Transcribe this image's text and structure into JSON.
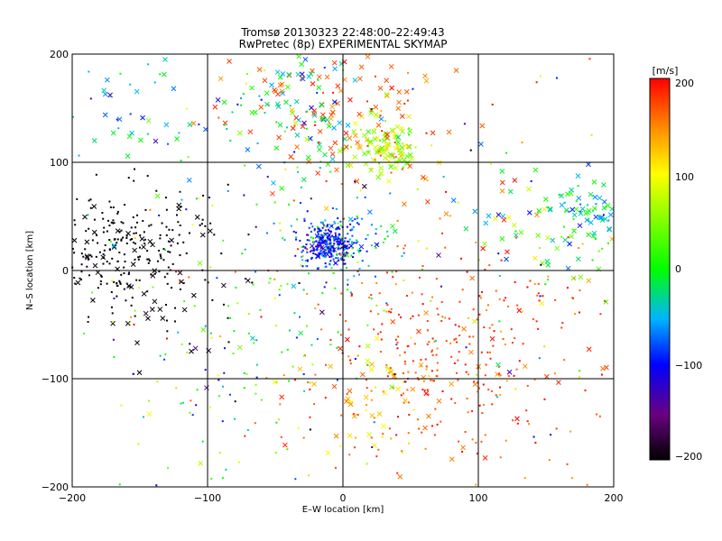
{
  "chart_data": {
    "type": "scatter",
    "title": "Tromsø 20130323 22:48:00–22:49:43",
    "subtitle": "RwPretec (8p) EXPERIMENTAL SKYMAP",
    "xlabel": "E–W location [km]",
    "ylabel": "N–S location [km]",
    "xlim": [
      -200,
      200
    ],
    "ylim": [
      -200,
      200
    ],
    "x_ticks": [
      "−200",
      "−100",
      "0",
      "100",
      "200"
    ],
    "y_ticks": [
      "−200",
      "−100",
      "0",
      "100",
      "200"
    ],
    "grid": true,
    "colorbar": {
      "label": "[m/s]",
      "range": [
        -200,
        200
      ],
      "ticks": [
        "200",
        "100",
        "0",
        "−100",
        "−200"
      ]
    },
    "markers": [
      "dot",
      "x"
    ],
    "clusters": [
      {
        "x": -10,
        "y": 25,
        "spread": 10,
        "value": -100,
        "vspread": 30,
        "count": 260,
        "marker": "dot"
      },
      {
        "x": 0,
        "y": 25,
        "spread": 22,
        "value": -40,
        "vspread": 70,
        "count": 120,
        "marker": "dot"
      },
      {
        "x": -160,
        "y": 20,
        "spread": 30,
        "value": -200,
        "vspread": 5,
        "count": 220,
        "marker": "dot"
      },
      {
        "x": -150,
        "y": -10,
        "spread": 40,
        "value": -195,
        "vspread": 10,
        "count": 60,
        "marker": "x"
      },
      {
        "x": 30,
        "y": 115,
        "spread": 14,
        "value": 70,
        "vspread": 50,
        "count": 110,
        "marker": "x"
      },
      {
        "x": 10,
        "y": 150,
        "spread": 45,
        "value": 170,
        "vspread": 30,
        "count": 140,
        "marker": "x"
      },
      {
        "x": -30,
        "y": 140,
        "spread": 30,
        "value": -20,
        "vspread": 80,
        "count": 90,
        "marker": "x"
      },
      {
        "x": -150,
        "y": 145,
        "spread": 25,
        "value": -50,
        "vspread": 60,
        "count": 40,
        "marker": "x"
      },
      {
        "x": 180,
        "y": 55,
        "spread": 15,
        "value": -20,
        "vspread": 60,
        "count": 70,
        "marker": "x"
      },
      {
        "x": 140,
        "y": 30,
        "spread": 35,
        "value": 40,
        "vspread": 120,
        "count": 60,
        "marker": "x"
      },
      {
        "x": 60,
        "y": -80,
        "spread": 50,
        "value": 175,
        "vspread": 30,
        "count": 260,
        "marker": "dot"
      },
      {
        "x": 30,
        "y": -110,
        "spread": 30,
        "value": 120,
        "vspread": 50,
        "count": 60,
        "marker": "x"
      },
      {
        "x": -60,
        "y": -60,
        "spread": 60,
        "value": 0,
        "vspread": 150,
        "count": 120,
        "marker": "dot"
      },
      {
        "x": 130,
        "y": -60,
        "spread": 50,
        "value": 170,
        "vspread": 40,
        "count": 80,
        "marker": "dot"
      },
      {
        "x": 0,
        "y": 0,
        "spread": 120,
        "value": 0,
        "vspread": 200,
        "count": 200,
        "marker": "dot"
      },
      {
        "x": -100,
        "y": -150,
        "spread": 60,
        "value": 50,
        "vspread": 100,
        "count": 30,
        "marker": "dot"
      },
      {
        "x": 160,
        "y": -170,
        "spread": 40,
        "value": 160,
        "vspread": 40,
        "count": 30,
        "marker": "dot"
      }
    ]
  }
}
